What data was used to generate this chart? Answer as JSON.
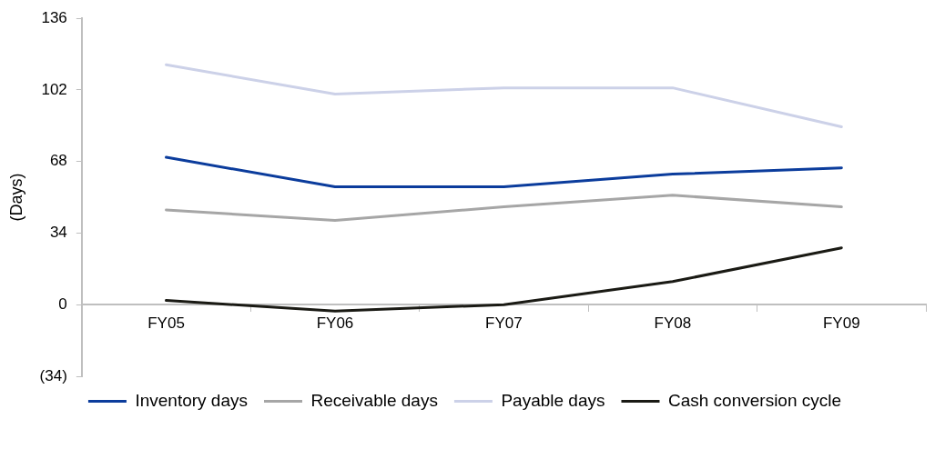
{
  "chart_data": {
    "type": "line",
    "categories": [
      "FY05",
      "FY06",
      "FY07",
      "FY08",
      "FY09"
    ],
    "ylabel": "(Days)",
    "ylim": [
      -34,
      136
    ],
    "yticks": [
      {
        "value": -34,
        "label": "(34)"
      },
      0,
      34,
      68,
      102,
      136
    ],
    "grid": false,
    "legend": "bottom",
    "marker": "none",
    "line_style": "solid",
    "series": [
      {
        "name": "Inventory days",
        "color": "#0b3c9c",
        "values": [
          70,
          56,
          56,
          62,
          65
        ]
      },
      {
        "name": "Receivable days",
        "color": "#a6a6a6",
        "values": [
          45,
          40,
          46.5,
          52,
          46.5
        ]
      },
      {
        "name": "Payable days",
        "color": "#ccd1e8",
        "values": [
          114,
          100,
          103,
          103,
          84.5
        ]
      },
      {
        "name": "Cash conversion cycle",
        "color": "#1a1a14",
        "values": [
          2,
          -3,
          0,
          11,
          27
        ]
      }
    ]
  }
}
